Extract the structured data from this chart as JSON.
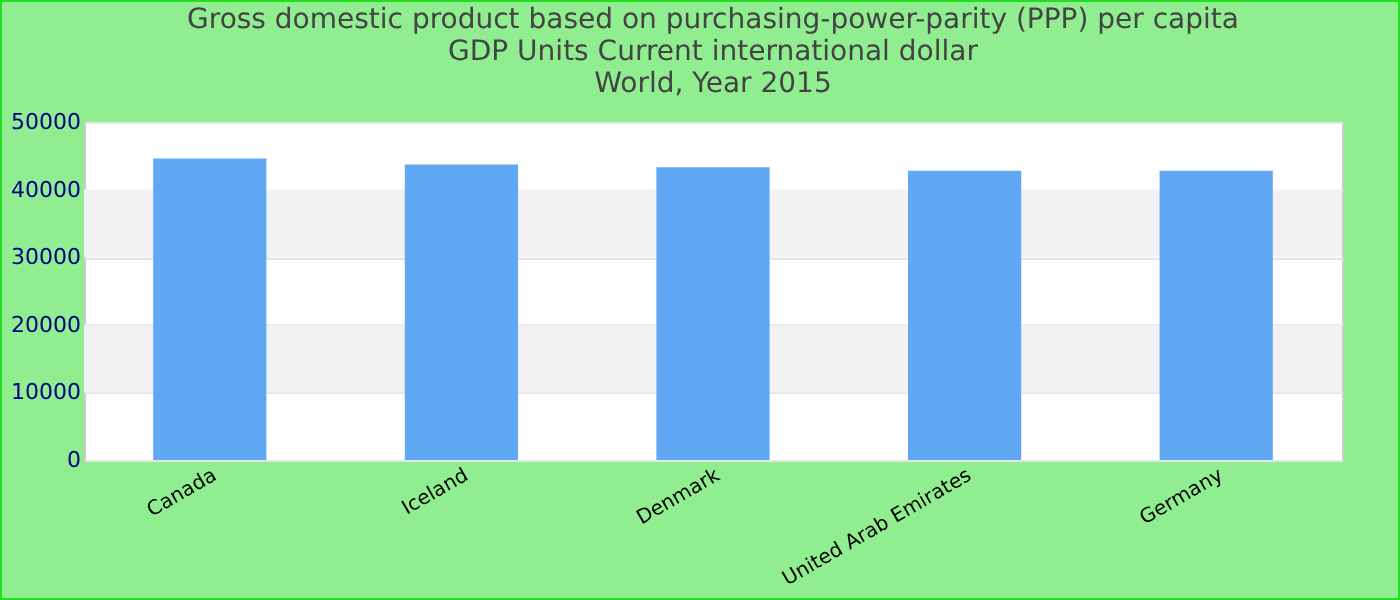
{
  "chart_data": {
    "type": "bar",
    "title": "Gross domestic product based on purchasing-power-parity (PPP) per capita GDP Units Current international dollar",
    "subtitle": "World, Year 2015",
    "categories": [
      "Canada",
      "Iceland",
      "Denmark",
      "United Arab Emirates",
      "Germany"
    ],
    "values": [
      44600,
      43700,
      43300,
      42800,
      42800
    ],
    "color": "#61a8f4",
    "ylim": [
      0,
      50000
    ],
    "yticks": [
      0,
      10000,
      20000,
      30000,
      40000,
      50000
    ],
    "grid": "y"
  }
}
